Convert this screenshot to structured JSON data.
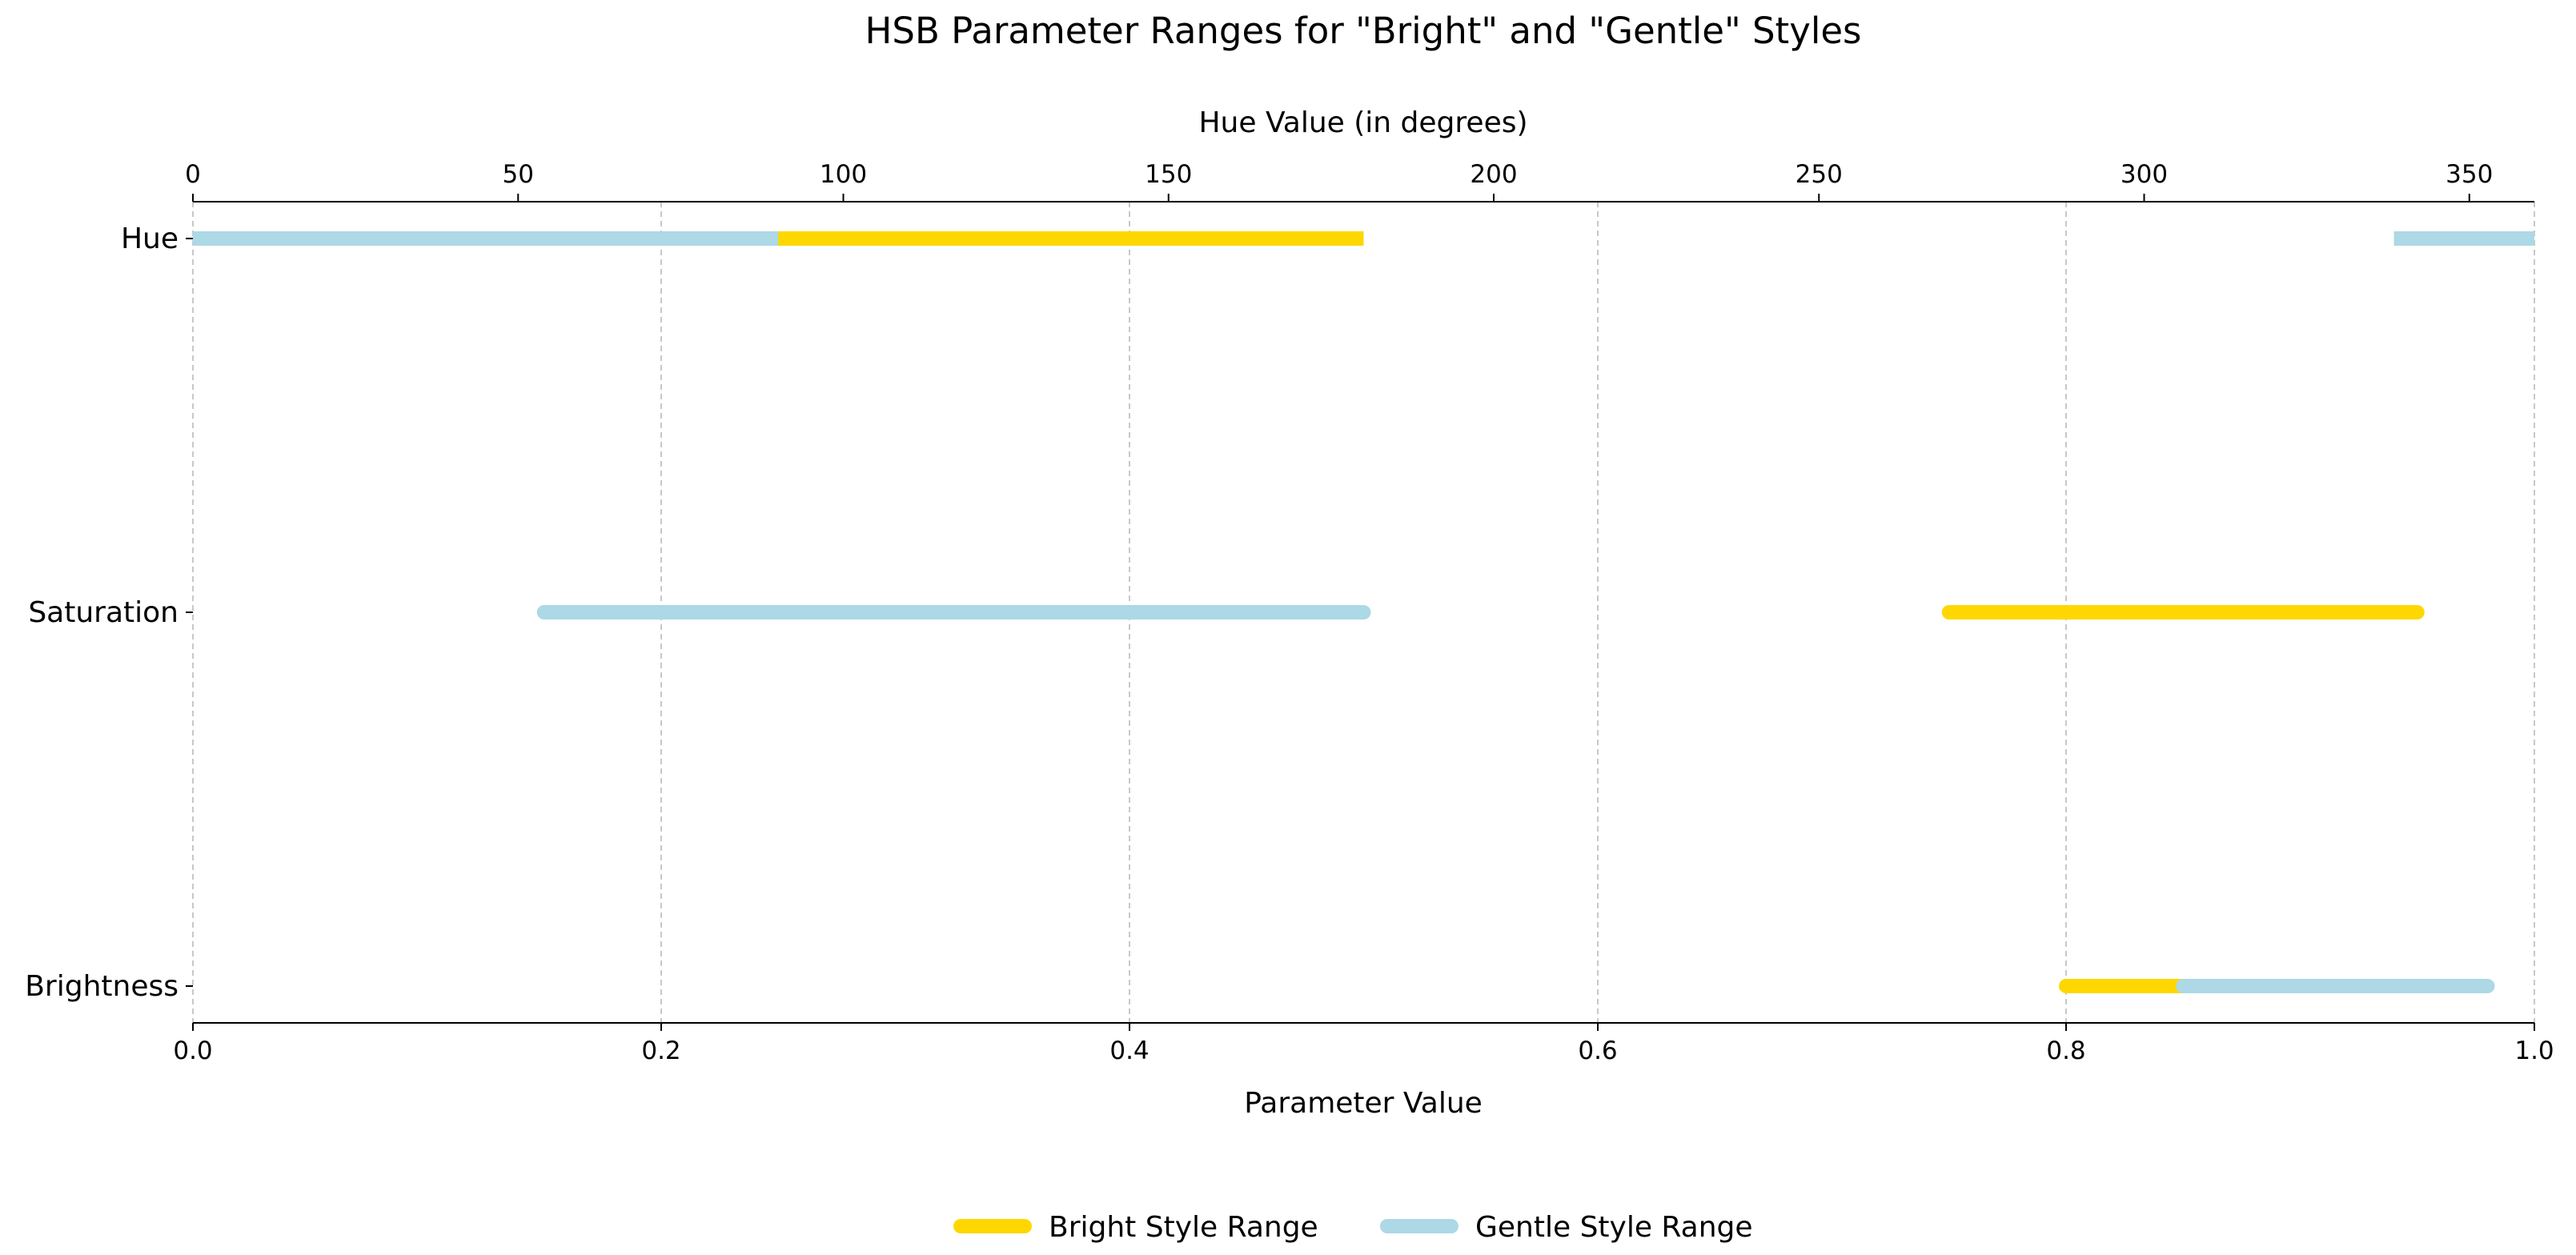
{
  "chart_data": {
    "type": "range",
    "title": "HSB Parameter Ranges for \"Bright\" and \"Gentle\" Styles",
    "xlabel": "Parameter Value",
    "x2label": "Hue Value (in degrees)",
    "xlim": [
      0.0,
      1.0
    ],
    "x2lim": [
      0,
      360
    ],
    "xticks": [
      "0.0",
      "0.2",
      "0.4",
      "0.6",
      "0.8",
      "1.0"
    ],
    "x2ticks": [
      "0",
      "50",
      "100",
      "150",
      "200",
      "250",
      "300",
      "350"
    ],
    "categories": [
      "Hue",
      "Saturation",
      "Brightness"
    ],
    "grid": "vertical dashed",
    "legend_position": "bottom-center",
    "series": [
      {
        "name": "Bright Style Range",
        "color": "#FFD700",
        "ranges": [
          {
            "category": "Hue",
            "start": 0.0,
            "end": 0.5
          },
          {
            "category": "Saturation",
            "start": 0.75,
            "end": 0.95
          },
          {
            "category": "Brightness",
            "start": 0.8,
            "end": 0.85
          }
        ]
      },
      {
        "name": "Gentle Style Range",
        "color": "#ADD8E6",
        "ranges": [
          {
            "category": "Hue",
            "start": 0.0,
            "end": 0.25
          },
          {
            "category": "Hue",
            "start": 0.94,
            "end": 1.0
          },
          {
            "category": "Saturation",
            "start": 0.15,
            "end": 0.5
          },
          {
            "category": "Brightness",
            "start": 0.85,
            "end": 0.98
          }
        ]
      }
    ]
  }
}
